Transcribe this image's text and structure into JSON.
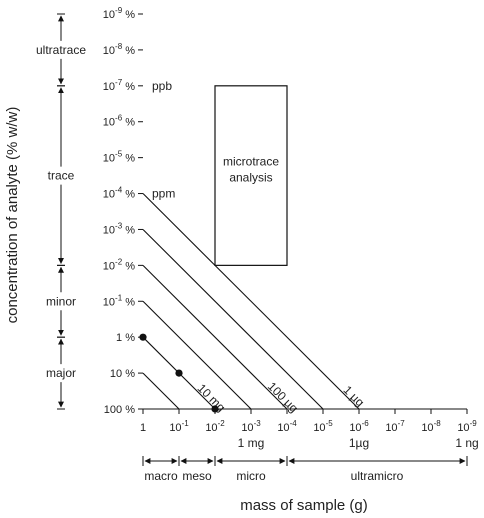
{
  "y_axis": {
    "label": "concentration of analyte (% w/w)",
    "ticks": [
      {
        "base": "10",
        "exp": "-9",
        "unit": " %"
      },
      {
        "base": "10",
        "exp": "-8",
        "unit": " %"
      },
      {
        "base": "10",
        "exp": "-7",
        "unit": " %"
      },
      {
        "base": "10",
        "exp": "-6",
        "unit": " %"
      },
      {
        "base": "10",
        "exp": "-5",
        "unit": " %"
      },
      {
        "base": "10",
        "exp": "-4",
        "unit": " %"
      },
      {
        "base": "10",
        "exp": "-3",
        "unit": " %"
      },
      {
        "base": "10",
        "exp": "-2",
        "unit": " %"
      },
      {
        "base": "10",
        "exp": "-1",
        "unit": " %"
      },
      {
        "base": "1",
        "exp": "",
        "unit": " %"
      },
      {
        "base": "10",
        "exp": "",
        "unit": " %"
      },
      {
        "base": "100",
        "exp": "",
        "unit": " %"
      }
    ],
    "ranges": [
      {
        "label": "ultratrace",
        "from": -9,
        "to": -7
      },
      {
        "label": "trace",
        "from": -7,
        "to": -2
      },
      {
        "label": "minor",
        "from": -2,
        "to": 0
      },
      {
        "label": "major",
        "from": 0,
        "to": 2
      }
    ],
    "inner_labels": [
      {
        "text": "ppb",
        "at": -7
      },
      {
        "text": "ppm",
        "at": -4
      }
    ]
  },
  "x_axis": {
    "label": "mass of sample (g)",
    "ticks": [
      {
        "base": "1",
        "exp": ""
      },
      {
        "base": "10",
        "exp": "-1"
      },
      {
        "base": "10",
        "exp": "-2"
      },
      {
        "base": "10",
        "exp": "-3"
      },
      {
        "base": "10",
        "exp": "-4"
      },
      {
        "base": "10",
        "exp": "-5"
      },
      {
        "base": "10",
        "exp": "-6"
      },
      {
        "base": "10",
        "exp": "-7"
      },
      {
        "base": "10",
        "exp": "-8"
      },
      {
        "base": "10",
        "exp": "-9"
      }
    ],
    "unit_labels": [
      {
        "text": "1 mg",
        "at": -3
      },
      {
        "text": "1µg",
        "at": -6
      },
      {
        "text": "1 ng",
        "at": -9
      }
    ],
    "ranges": [
      {
        "label": "macro",
        "from": 0,
        "to": -1
      },
      {
        "label": "meso",
        "from": -1,
        "to": -2
      },
      {
        "label": "micro",
        "from": -2,
        "to": -4
      },
      {
        "label": "ultramicro",
        "from": -4,
        "to": -9
      }
    ]
  },
  "microtrace_box": {
    "label_line1": "microtrace",
    "label_line2": "analysis",
    "mass_from": -2,
    "mass_to": -4,
    "conc_from": -7,
    "conc_to": -2
  },
  "analyte_lines": [
    {
      "label": "10 mg",
      "mass": -2
    },
    {
      "label": "100 µg",
      "mass": -4
    },
    {
      "label": "1 µg",
      "mass": -6
    }
  ],
  "extra_lines_mass": [
    -1,
    -3,
    -5
  ],
  "dots": [
    {
      "mass": 0,
      "conc": 0
    },
    {
      "mass": -1,
      "conc": 1
    },
    {
      "mass": -2,
      "conc": 2
    }
  ],
  "colors": {
    "lightest": "#ecf6fd",
    "level1": "#d6ecf8",
    "level2": "#bde0f2",
    "level3": "#95cdea",
    "level4": "#6fbbe0",
    "level5": "#4aa7d7"
  }
}
